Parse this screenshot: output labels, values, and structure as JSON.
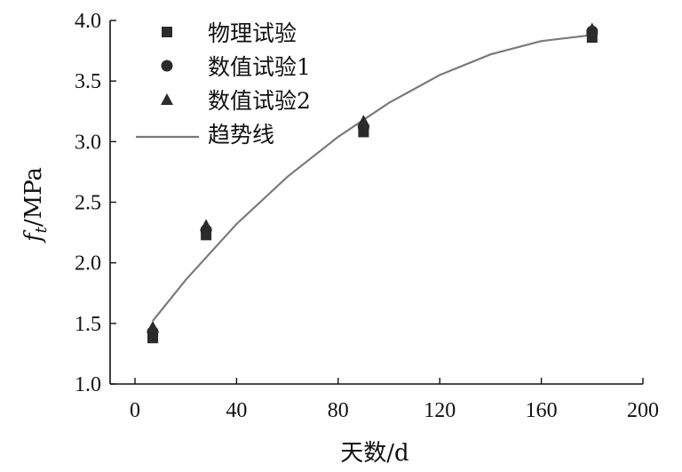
{
  "chart_data": {
    "type": "scatter",
    "title": "",
    "xlabel": "天数/d",
    "ylabel": {
      "main": "f",
      "subscript": "t",
      "unit": "/MPa"
    },
    "xlim": [
      0,
      200
    ],
    "ylim": [
      1.0,
      4.0
    ],
    "x_ticks": [
      0,
      40,
      80,
      120,
      160,
      200
    ],
    "x_tick_labels": [
      "0",
      "40",
      "80",
      "120",
      "160",
      "200"
    ],
    "y_ticks": [
      1.0,
      1.5,
      2.0,
      2.5,
      3.0,
      3.5,
      4.0
    ],
    "y_tick_labels": [
      "1.0",
      "1.5",
      "2.0",
      "2.5",
      "3.0",
      "3.5",
      "4.0"
    ],
    "grid": false,
    "legend_position": "top-left",
    "series": [
      {
        "name": "物理试验",
        "marker": "square",
        "color": "#2b2b2b",
        "points": [
          [
            7,
            1.38
          ],
          [
            28,
            2.23
          ],
          [
            90,
            3.08
          ],
          [
            180,
            3.86
          ]
        ]
      },
      {
        "name": "数值试验1",
        "marker": "circle",
        "color": "#2b2b2b",
        "points": [
          [
            7,
            1.43
          ],
          [
            28,
            2.27
          ],
          [
            90,
            3.12
          ],
          [
            180,
            3.91
          ]
        ]
      },
      {
        "name": "数值试验2",
        "marker": "triangle",
        "color": "#2b2b2b",
        "points": [
          [
            7,
            1.47
          ],
          [
            28,
            2.31
          ],
          [
            90,
            3.17
          ],
          [
            180,
            3.93
          ]
        ]
      },
      {
        "name": "趋势线",
        "marker": "line",
        "color": "#7a7a7a",
        "points": [
          [
            7,
            1.52
          ],
          [
            20,
            1.86
          ],
          [
            40,
            2.32
          ],
          [
            60,
            2.71
          ],
          [
            80,
            3.04
          ],
          [
            100,
            3.32
          ],
          [
            120,
            3.55
          ],
          [
            140,
            3.72
          ],
          [
            160,
            3.83
          ],
          [
            180,
            3.88
          ]
        ]
      }
    ]
  }
}
